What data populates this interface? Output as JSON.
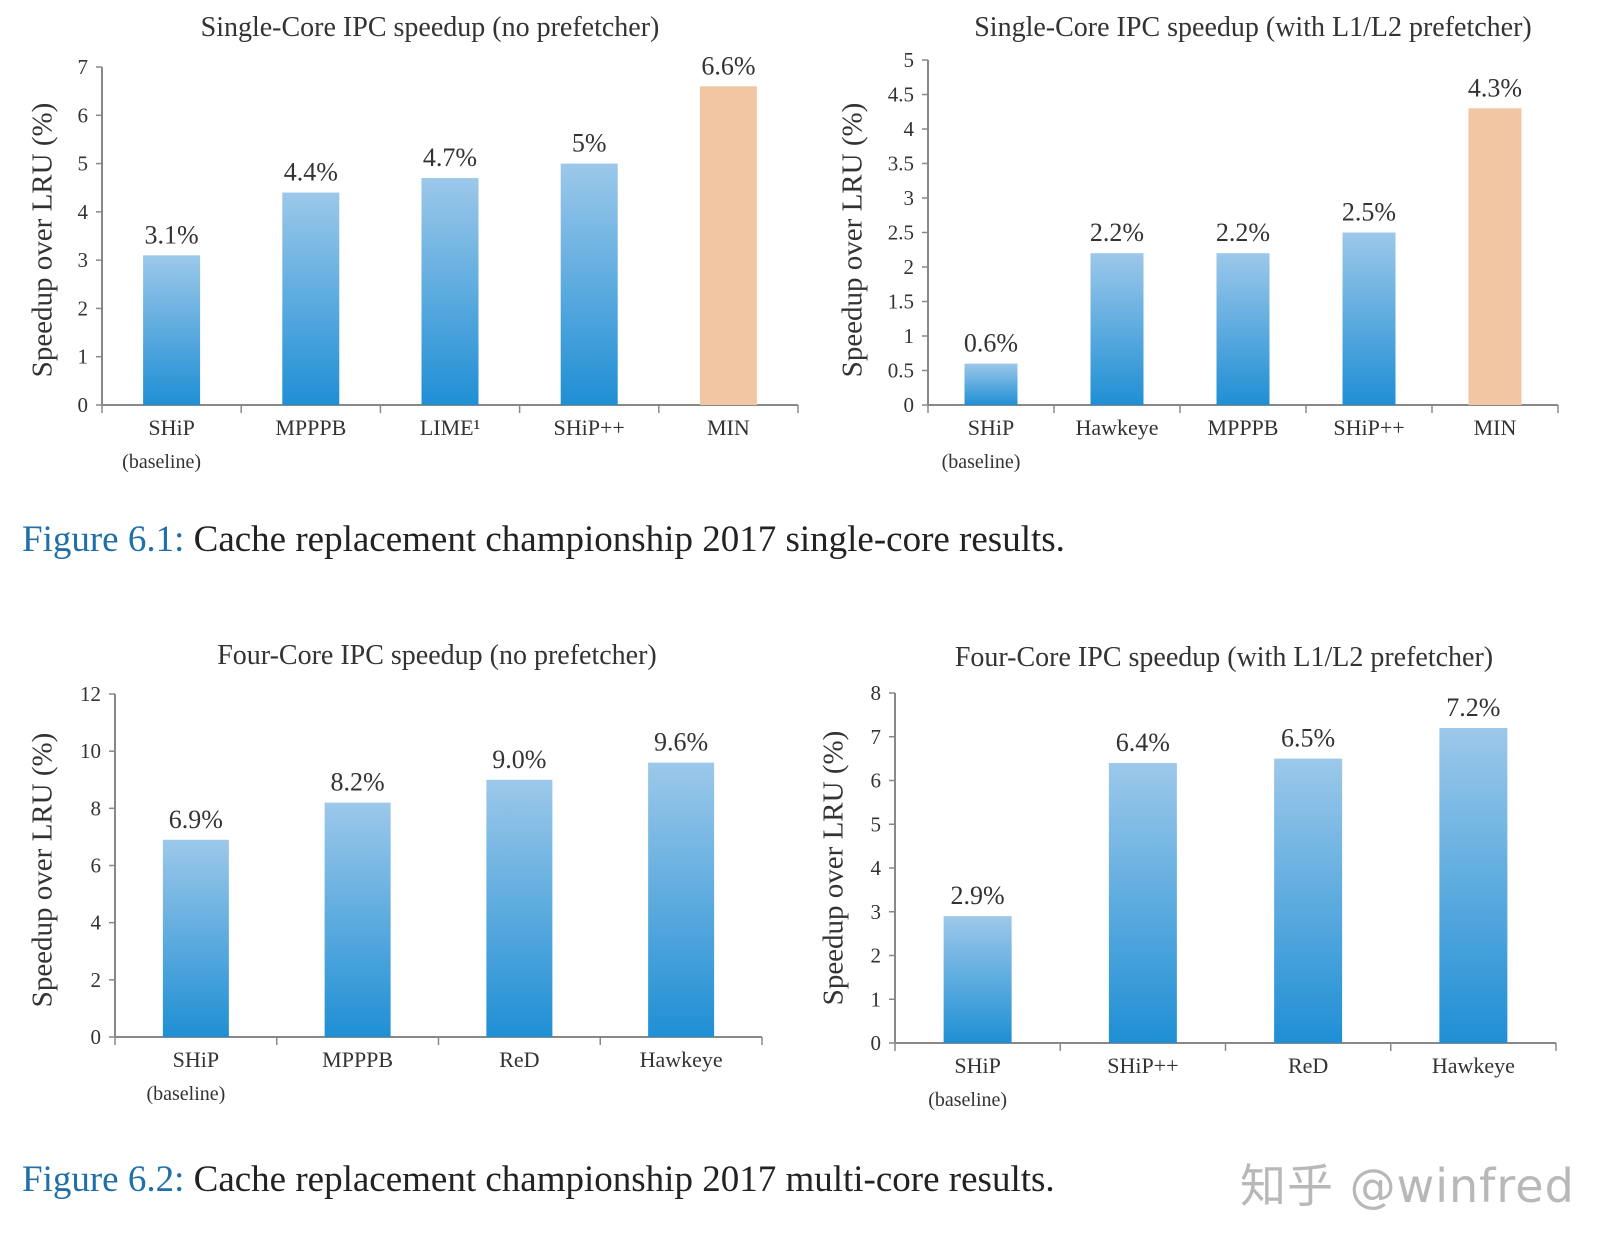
{
  "chart_data": [
    {
      "type": "bar",
      "title": "Single-Core IPC speedup (no prefetcher)",
      "ylabel": "Speedup over LRU (%)",
      "xlabel": "",
      "ylim": [
        0,
        7
      ],
      "yticks": [
        0,
        1,
        2,
        3,
        4,
        5,
        6,
        7
      ],
      "categories": [
        "SHiP",
        "MPPPB",
        "LIME¹",
        "SHiP++",
        "MIN"
      ],
      "category_sublabels": [
        "(baseline)",
        "",
        "",
        "",
        ""
      ],
      "values": [
        3.1,
        4.4,
        4.7,
        5.0,
        6.6
      ],
      "data_labels": [
        "3.1%",
        "4.4%",
        "4.7%",
        "5%",
        "6.6%"
      ],
      "bar_colors": [
        "#3a9ad8",
        "#3a9ad8",
        "#3a9ad8",
        "#3a9ad8",
        "#f2c6a2"
      ],
      "grid": false
    },
    {
      "type": "bar",
      "title": "Single-Core IPC speedup (with L1/L2 prefetcher)",
      "ylabel": "Speedup over LRU (%)",
      "xlabel": "",
      "ylim": [
        0,
        5
      ],
      "yticks": [
        0,
        0.5,
        1,
        1.5,
        2,
        2.5,
        3,
        3.5,
        4,
        4.5,
        5
      ],
      "categories": [
        "SHiP",
        "Hawkeye",
        "MPPPB",
        "SHiP++",
        "MIN"
      ],
      "category_sublabels": [
        "(baseline)",
        "",
        "",
        "",
        ""
      ],
      "values": [
        0.6,
        2.2,
        2.2,
        2.5,
        4.3
      ],
      "data_labels": [
        "0.6%",
        "2.2%",
        "2.2%",
        "2.5%",
        "4.3%"
      ],
      "bar_colors": [
        "#3a9ad8",
        "#3a9ad8",
        "#3a9ad8",
        "#3a9ad8",
        "#f2c6a2"
      ],
      "grid": false
    },
    {
      "type": "bar",
      "title": "Four-Core IPC speedup (no prefetcher)",
      "ylabel": "Speedup over LRU (%)",
      "xlabel": "",
      "ylim": [
        0,
        12
      ],
      "yticks": [
        0,
        2,
        4,
        6,
        8,
        10,
        12
      ],
      "categories": [
        "SHiP",
        "MPPPB",
        "ReD",
        "Hawkeye"
      ],
      "category_sublabels": [
        "(baseline)",
        "",
        "",
        ""
      ],
      "values": [
        6.9,
        8.2,
        9.0,
        9.6
      ],
      "data_labels": [
        "6.9%",
        "8.2%",
        "9.0%",
        "9.6%"
      ],
      "bar_colors": [
        "#3a9ad8",
        "#3a9ad8",
        "#3a9ad8",
        "#3a9ad8"
      ],
      "grid": false
    },
    {
      "type": "bar",
      "title": "Four-Core IPC speedup (with L1/L2 prefetcher)",
      "ylabel": "Speedup over LRU (%)",
      "xlabel": "",
      "ylim": [
        0,
        8
      ],
      "yticks": [
        0,
        1,
        2,
        3,
        4,
        5,
        6,
        7,
        8
      ],
      "categories": [
        "SHiP",
        "SHiP++",
        "ReD",
        "Hawkeye"
      ],
      "category_sublabels": [
        "(baseline)",
        "",
        "",
        ""
      ],
      "values": [
        2.9,
        6.4,
        6.5,
        7.2
      ],
      "data_labels": [
        "2.9%",
        "6.4%",
        "6.5%",
        "7.2%"
      ],
      "bar_colors": [
        "#3a9ad8",
        "#3a9ad8",
        "#3a9ad8",
        "#3a9ad8"
      ],
      "grid": false
    }
  ],
  "captions": [
    {
      "label": "Figure 6.1:",
      "text": " Cache replacement championship 2017 single-core results."
    },
    {
      "label": "Figure 6.2:",
      "text": " Cache replacement championship 2017 multi-core results."
    }
  ],
  "watermark": "知乎 @winfred",
  "colors": {
    "bar_top": "#9cc8ea",
    "bar_bottom": "#1f8fd4",
    "highlight": "#f2c6a2",
    "caption_label": "#1f6fa8",
    "axis": "#888888"
  }
}
